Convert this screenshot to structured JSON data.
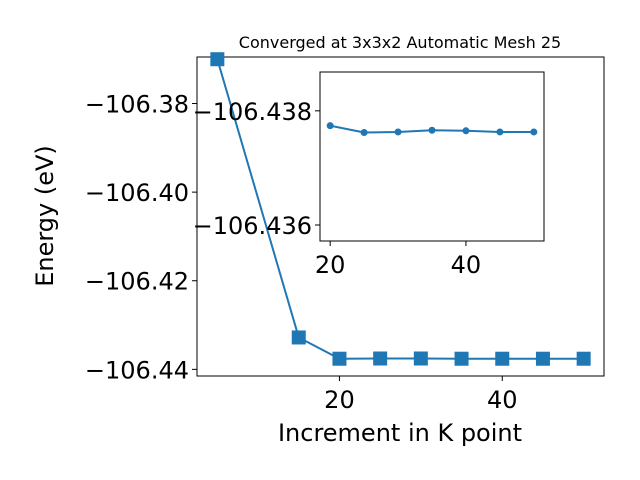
{
  "chart_data": {
    "type": "line",
    "title": "Converged at 3x3x2 Automatic Mesh 25",
    "xlabel": "Increment in K point",
    "ylabel": "Energy (eV)",
    "xlim": [
      2.5,
      52.5
    ],
    "ylim": [
      -106.4415,
      -106.3695
    ],
    "xticks": [
      20,
      40
    ],
    "xtick_labels": [
      "20",
      "40"
    ],
    "yticks": [
      -106.38,
      -106.4,
      -106.42,
      -106.44
    ],
    "ytick_labels": [
      "−106.38",
      "−106.40",
      "−106.42",
      "−106.44"
    ],
    "color": "#1f77b4",
    "marker": "square",
    "grid": false,
    "series": [
      {
        "x": [
          5,
          15,
          20,
          25,
          30,
          35,
          40,
          45,
          50
        ],
        "y": [
          -106.37,
          -106.4328,
          -106.4376,
          -106.43755,
          -106.43755,
          -106.4376,
          -106.4376,
          -106.4376,
          -106.4376
        ]
      }
    ],
    "inset": {
      "type": "line",
      "xlim": [
        18.5,
        51.5
      ],
      "ylim": [
        -106.43572,
        -106.43868
      ],
      "xticks": [
        20,
        40
      ],
      "xtick_labels": [
        "20",
        "40"
      ],
      "yticks": [
        -106.438,
        -106.436
      ],
      "ytick_labels": [
        "−106.438",
        "−106.436"
      ],
      "marker": "circle",
      "series": [
        {
          "x": [
            20,
            25,
            30,
            35,
            40,
            45,
            50
          ],
          "y": [
            -106.43774,
            -106.43762,
            -106.43763,
            -106.43766,
            -106.43765,
            -106.43763,
            -106.43763
          ]
        }
      ]
    }
  }
}
